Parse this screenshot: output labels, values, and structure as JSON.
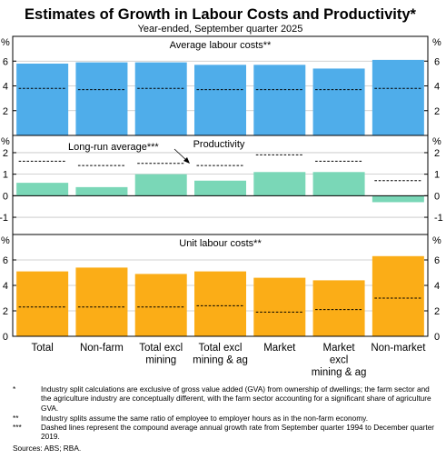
{
  "chart_data": {
    "type": "bar",
    "title": "Estimates of Growth in Labour Costs and Productivity*",
    "subtitle": "Year-ended, September quarter 2025",
    "categories": [
      [
        "Total"
      ],
      [
        "Non-farm"
      ],
      [
        "Total excl",
        "mining"
      ],
      [
        "Total excl",
        "mining & ag"
      ],
      [
        "Market"
      ],
      [
        "Market",
        "excl",
        "mining & ag"
      ],
      [
        "Non-market"
      ]
    ],
    "y_unit": "%",
    "grid": true,
    "panels": [
      {
        "title": "Average labour costs**",
        "ylim": [
          0,
          8
        ],
        "ticks": [
          "2",
          "4",
          "6"
        ],
        "tick_values": [
          2,
          4,
          6
        ],
        "bar_color": "#4fadea",
        "values": [
          5.8,
          5.9,
          5.9,
          5.7,
          5.7,
          5.4,
          6.1
        ],
        "long_run": [
          3.8,
          3.7,
          3.8,
          3.7,
          3.7,
          3.7,
          3.8
        ]
      },
      {
        "title": "Productivity",
        "ylim": [
          -1.8,
          2.8
        ],
        "ticks": [
          "-1",
          "0",
          "1",
          "2"
        ],
        "tick_values": [
          -1,
          0,
          1,
          2
        ],
        "bar_color": "#7ad7b7",
        "values": [
          0.6,
          0.4,
          1.0,
          0.7,
          1.1,
          1.1,
          -0.3
        ],
        "long_run": [
          1.6,
          1.4,
          1.5,
          1.4,
          1.9,
          1.6,
          0.7
        ],
        "annotation": "Long-run average***"
      },
      {
        "title": "Unit labour costs**",
        "ylim": [
          0,
          8
        ],
        "ticks": [
          "0",
          "2",
          "4",
          "6"
        ],
        "tick_values": [
          0,
          2,
          4,
          6
        ],
        "bar_color": "#fbad17",
        "values": [
          5.1,
          5.4,
          4.9,
          5.1,
          4.6,
          4.4,
          6.3
        ],
        "long_run": [
          2.3,
          2.3,
          2.3,
          2.4,
          1.9,
          2.1,
          3.0
        ]
      }
    ],
    "footnotes": [
      {
        "mark": "*",
        "text": "Industry split calculations are exclusive of gross value added (GVA) from ownership of dwellings; the farm sector and the agriculture industry are conceptually different, with the farm sector accounting for a significant share of agriculture GVA."
      },
      {
        "mark": "**",
        "text": "Industry splits assume the same ratio of employee to employer hours as in the non-farm economy."
      },
      {
        "mark": "***",
        "text": "Dashed lines represent the compound average annual growth rate from September quarter 1994 to December quarter 2019."
      }
    ],
    "sources": "Sources: ABS; RBA."
  }
}
